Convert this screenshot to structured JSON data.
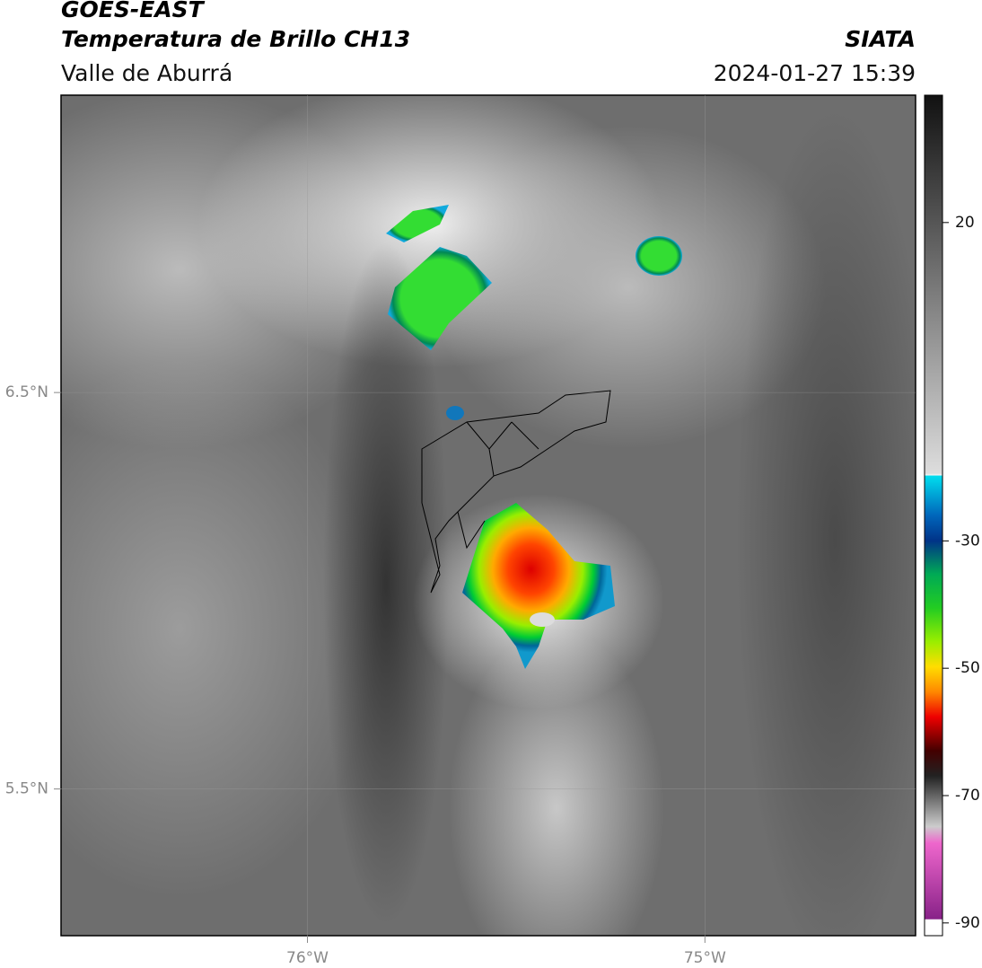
{
  "header": {
    "title": "GOES-EAST",
    "subtitle": "Temperatura de Brillo CH13",
    "region": "Valle de Aburrá",
    "source": "SIATA",
    "timestamp": "2024-01-27 15:39"
  },
  "map": {
    "xlim": [
      -76.62,
      -74.47
    ],
    "ylim": [
      5.13,
      7.25
    ],
    "xticks": [
      {
        "value": -76,
        "label": "76°W"
      },
      {
        "value": -75,
        "label": "75°W"
      }
    ],
    "yticks": [
      {
        "value": 6.5,
        "label": "6.5°N"
      },
      {
        "value": 5.5,
        "label": "5.5°N"
      }
    ],
    "grid": true
  },
  "colorbar": {
    "lim": [
      -92,
      40
    ],
    "ticks": [
      20,
      -30,
      -50,
      -70,
      -90
    ]
  }
}
